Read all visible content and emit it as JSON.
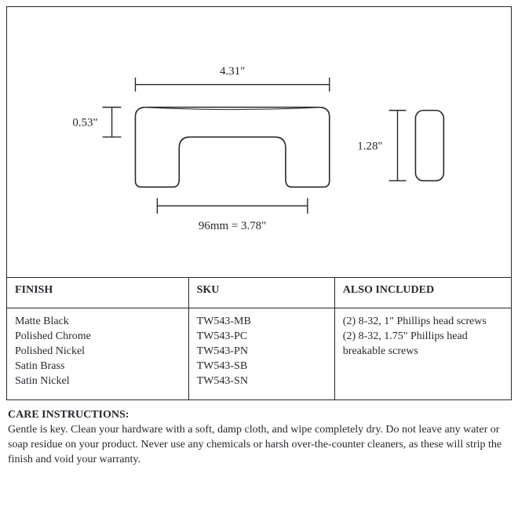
{
  "diagram": {
    "stroke": "#24292e",
    "stroke_width": 1.6,
    "fill": "#ffffff",
    "label_fontsize": 15,
    "dimensions": {
      "width_label": "4.31\"",
      "height_label": "0.53\"",
      "cc_label": "96mm = 3.78\"",
      "side_height_label": "1.28\""
    }
  },
  "table": {
    "columns": [
      "FINISH",
      "SKU",
      "ALSO INCLUDED"
    ],
    "col_widths": [
      "36%",
      "29%",
      "35%"
    ],
    "finish": [
      "Matte Black",
      "Polished Chrome",
      "Polished Nickel",
      "Satin Brass",
      "Satin Nickel"
    ],
    "sku": [
      "TW543-MB",
      "TW543-PC",
      "TW543-PN",
      "TW543-SB",
      "TW543-SN"
    ],
    "included": "(2) 8-32, 1\" Phillips head screws\n(2) 8-32, 1.75\" Phillips head breakable screws"
  },
  "care": {
    "heading": "CARE INSTRUCTIONS:",
    "body": "Gentle is key. Clean your hardware with a soft, damp cloth, and wipe completely dry. Do not leave any water or soap residue on your product. Never use any chemicals or harsh over-the-counter cleaners, as these will strip the finish and void your warranty."
  }
}
